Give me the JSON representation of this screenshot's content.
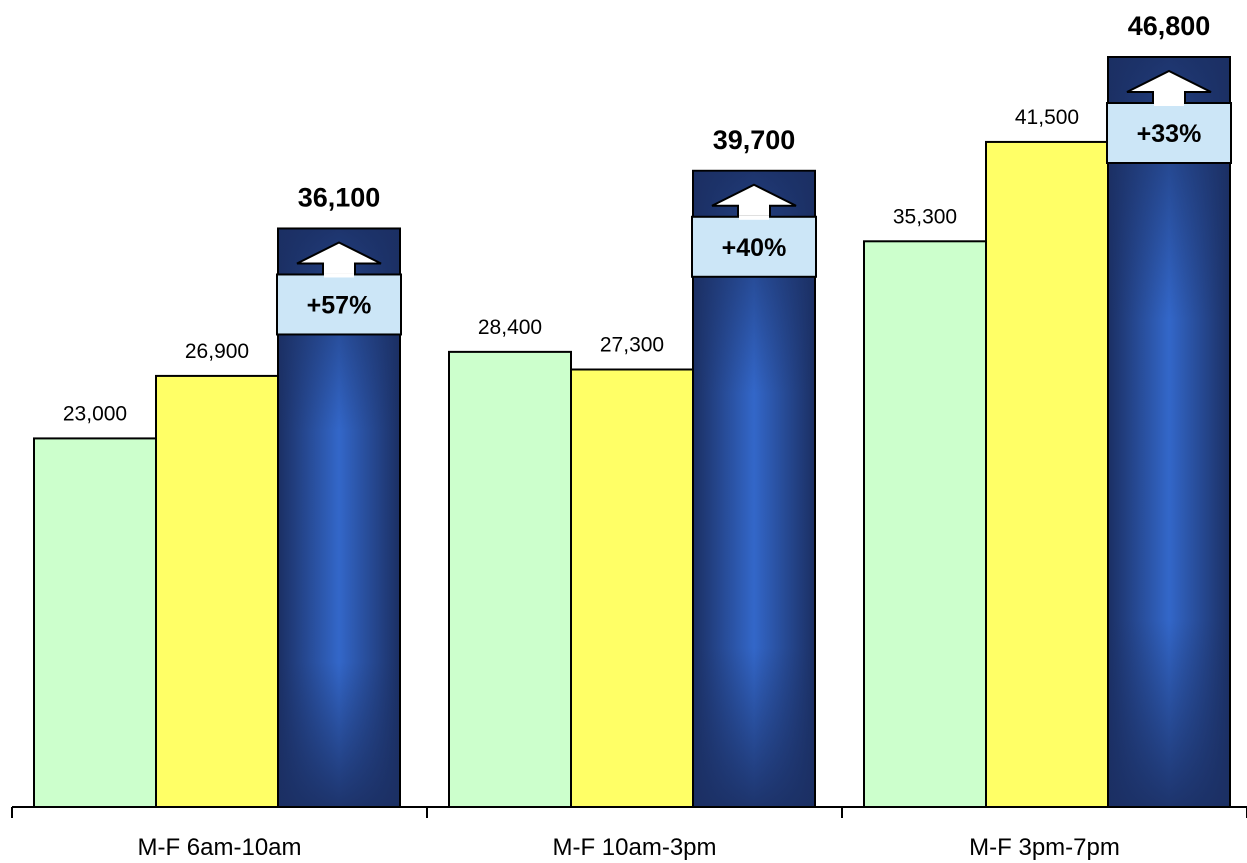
{
  "chart_data": {
    "type": "bar",
    "categories": [
      "M-F 6am-10am",
      "M-F 10am-3pm",
      "M-F 3pm-7pm"
    ],
    "series": [
      {
        "values": [
          23000,
          28400,
          35300
        ],
        "labels": [
          "23,000",
          "28,400",
          "35,300"
        ],
        "color": "#ccffcc",
        "emphasis": false
      },
      {
        "values": [
          26900,
          27300,
          41500
        ],
        "labels": [
          "26,900",
          "27,300",
          "41,500"
        ],
        "color": "#ffff66",
        "emphasis": false
      },
      {
        "values": [
          36100,
          39700,
          46800
        ],
        "labels": [
          "36,100",
          "39,700",
          "46,800"
        ],
        "color": "#1f3a7a",
        "emphasis": true
      }
    ],
    "annotations": [
      "+57%",
      "+40%",
      "+33%"
    ],
    "annotation_color": "#cce6f7",
    "ylim": [
      0,
      50000
    ],
    "grid": false,
    "legend": "none",
    "title": "",
    "xlabel": "",
    "ylabel": ""
  }
}
